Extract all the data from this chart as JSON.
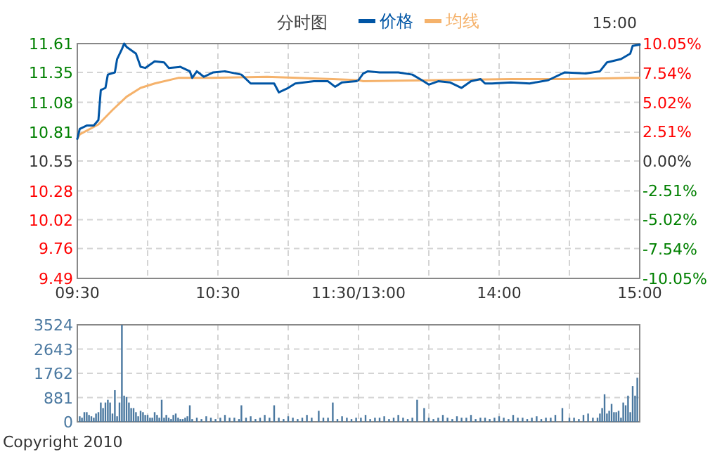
{
  "chart_data": [
    {
      "type": "line",
      "title": "分时图",
      "legend": "top",
      "grid": true,
      "xlim": [
        9.5,
        11.5
      ],
      "xticks": [
        {
          "value": 9.5,
          "label": "09:30"
        },
        {
          "value": 10,
          "label": null
        },
        {
          "value": 10.5,
          "label": "10:30"
        },
        {
          "value": 11,
          "label": null
        },
        {
          "value": 11.5,
          "label": "11:30/13:00"
        }
      ],
      "ylim": [
        9.49,
        11.61
      ],
      "yticks": [
        9.49,
        9.76,
        10.02,
        10.28,
        10.55,
        10.81,
        11.08,
        11.35,
        11.61
      ],
      "series": [
        {
          "name": "价格",
          "color": "#0055a5",
          "x": [
            9.5,
            9.517,
            9.567,
            9.617,
            9.65,
            9.667,
            9.7,
            9.717,
            9.767,
            9.783,
            9.817,
            9.833,
            9.85,
            9.917,
            9.95,
            9.983,
            10.05,
            10.117,
            10.15,
            10.233,
            10.3,
            10.317,
            10.35,
            10.4,
            10.467,
            10.55,
            10.667,
            10.733,
            10.783,
            10.9,
            10.933,
            11,
            11.05,
            11.183,
            11.283,
            11.333,
            11.383,
            11.483,
            11.5
          ],
          "values": [
            10.75,
            10.84,
            10.87,
            10.87,
            10.92,
            11.19,
            11.21,
            11.33,
            11.35,
            11.47,
            11.56,
            11.61,
            11.58,
            11.52,
            11.4,
            11.39,
            11.45,
            11.44,
            11.39,
            11.4,
            11.36,
            11.3,
            11.36,
            11.31,
            11.35,
            11.36,
            11.33,
            11.25,
            11.25,
            11.25,
            11.17,
            11.21,
            11.25,
            11.27,
            11.27,
            11.22,
            11.26,
            11.27,
            11.28
          ]
        },
        {
          "name": "均线",
          "color": "#f5b26b",
          "x": [
            9.5,
            9.517,
            9.65,
            9.75,
            9.85,
            9.95,
            10.05,
            10.217,
            10.45,
            10.85,
            11.317,
            11.5
          ],
          "values": [
            10.75,
            10.79,
            10.88,
            11.01,
            11.13,
            11.21,
            11.25,
            11.3,
            11.3,
            11.31,
            11.29,
            11.28
          ]
        }
      ]
    },
    {
      "type": "line",
      "grid": true,
      "tick_labels": "x",
      "xlim": [
        13,
        15
      ],
      "xticks": [
        {
          "value": 13.5,
          "label": null
        },
        {
          "value": 14,
          "label": "14:00"
        },
        {
          "value": 14.5,
          "label": null
        },
        {
          "value": 15,
          "label": "15:00"
        }
      ],
      "ylim": [
        9.49,
        11.61
      ],
      "yticks": [
        9.49,
        9.76,
        10.02,
        10.28,
        10.55,
        10.81,
        11.08,
        11.35,
        11.61
      ],
      "y2lim": [
        -10.05,
        10.05
      ],
      "y2ticks": [
        {
          "value": 10.05,
          "label": "10.05%"
        },
        {
          "value": 7.54,
          "label": "7.54%"
        },
        {
          "value": 5.02,
          "label": "5.02%"
        },
        {
          "value": 2.51,
          "label": "2.51%"
        },
        {
          "value": 0,
          "label": "0.00%"
        },
        {
          "value": -2.51,
          "label": "-2.51%"
        },
        {
          "value": -5.02,
          "label": "-5.02%"
        },
        {
          "value": -7.54,
          "label": "-7.54%"
        },
        {
          "value": -10.05,
          "label": "-10.05%"
        }
      ],
      "annotations": [
        "15:00"
      ],
      "series": [
        {
          "color": "#0055a5",
          "x": [
            13,
            13.033,
            13.067,
            13.15,
            13.283,
            13.383,
            13.45,
            13.5,
            13.567,
            13.65,
            13.733,
            13.8,
            13.867,
            13.9,
            13.95,
            14.083,
            14.217,
            14.35,
            14.467,
            14.617,
            14.717,
            14.767,
            14.867,
            14.933,
            14.95,
            15
          ],
          "values": [
            11.28,
            11.34,
            11.36,
            11.35,
            11.35,
            11.33,
            11.28,
            11.24,
            11.27,
            11.26,
            11.21,
            11.27,
            11.29,
            11.25,
            11.25,
            11.26,
            11.25,
            11.28,
            11.35,
            11.34,
            11.36,
            11.44,
            11.47,
            11.52,
            11.59,
            11.6
          ]
        },
        {
          "color": "#f5b26b",
          "x": [
            13,
            13.033,
            14.083,
            14.483,
            14.933,
            15
          ],
          "values": [
            11.28,
            11.27,
            11.29,
            11.29,
            11.3,
            11.3
          ]
        }
      ]
    },
    {
      "type": "bar",
      "color": "#4a78a0",
      "grid": true,
      "tick_labels": "y",
      "xlim": [
        9.5,
        11.5
      ],
      "xticks": [
        9.5,
        10,
        10.5,
        11,
        11.5
      ],
      "ylim": [
        0,
        3524
      ],
      "yticks": [
        0,
        881,
        1762,
        2643,
        3524
      ],
      "x": [
        9.517,
        9.533,
        9.55,
        9.567,
        9.583,
        9.6,
        9.617,
        9.633,
        9.65,
        9.667,
        9.683,
        9.7,
        9.717,
        9.733,
        9.75,
        9.767,
        9.783,
        9.8,
        9.817,
        9.833,
        9.85,
        9.867,
        9.883,
        9.9,
        9.917,
        9.933,
        9.95,
        9.967,
        9.983,
        10,
        10.017,
        10.033,
        10.05,
        10.067,
        10.083,
        10.1,
        10.117,
        10.133,
        10.15,
        10.167,
        10.183,
        10.2,
        10.217,
        10.233,
        10.25,
        10.267,
        10.283,
        10.3,
        10.317,
        10.35,
        10.383,
        10.417,
        10.45,
        10.483,
        10.517,
        10.55,
        10.583,
        10.617,
        10.65,
        10.667,
        10.7,
        10.733,
        10.767,
        10.8,
        10.833,
        10.867,
        10.9,
        10.933,
        10.967,
        11,
        11.033,
        11.067,
        11.1,
        11.133,
        11.167,
        11.217,
        11.25,
        11.283,
        11.317,
        11.35,
        11.383,
        11.417,
        11.45,
        11.483
      ],
      "values": [
        200,
        150,
        350,
        350,
        250,
        200,
        150,
        300,
        350,
        700,
        500,
        700,
        800,
        700,
        300,
        1150,
        200,
        700,
        3524,
        950,
        900,
        700,
        500,
        500,
        350,
        200,
        400,
        350,
        250,
        250,
        150,
        150,
        350,
        250,
        150,
        800,
        150,
        250,
        150,
        100,
        250,
        300,
        150,
        100,
        100,
        150,
        200,
        600,
        100,
        150,
        100,
        200,
        150,
        100,
        150,
        250,
        150,
        150,
        100,
        600,
        150,
        200,
        100,
        150,
        250,
        150,
        600,
        150,
        100,
        200,
        150,
        100,
        150,
        250,
        150,
        400,
        150,
        150,
        700,
        100,
        200,
        150,
        100,
        150
      ]
    },
    {
      "type": "bar",
      "color": "#4a78a0",
      "grid": true,
      "tick_labels": false,
      "xlim": [
        13,
        15
      ],
      "xticks": [
        13.5,
        14,
        14.5,
        15
      ],
      "ylim": [
        0,
        3524
      ],
      "yticks": [
        0,
        881,
        1762,
        2643,
        3524
      ],
      "annotations": [
        "Copyright 2010"
      ],
      "x": [
        13.017,
        13.05,
        13.083,
        13.117,
        13.15,
        13.183,
        13.217,
        13.25,
        13.283,
        13.317,
        13.35,
        13.383,
        13.417,
        13.467,
        13.5,
        13.533,
        13.567,
        13.6,
        13.633,
        13.667,
        13.7,
        13.733,
        13.767,
        13.8,
        13.833,
        13.867,
        13.9,
        13.933,
        13.967,
        14,
        14.033,
        14.067,
        14.1,
        14.133,
        14.167,
        14.2,
        14.233,
        14.267,
        14.3,
        14.333,
        14.367,
        14.4,
        14.45,
        14.5,
        14.533,
        14.567,
        14.6,
        14.633,
        14.667,
        14.7,
        14.717,
        14.733,
        14.75,
        14.767,
        14.783,
        14.8,
        14.817,
        14.833,
        14.85,
        14.867,
        14.883,
        14.9,
        14.917,
        14.933,
        14.95,
        14.967,
        14.983
      ],
      "values": [
        150,
        250,
        100,
        150,
        150,
        200,
        100,
        150,
        250,
        150,
        100,
        150,
        800,
        500,
        150,
        100,
        150,
        250,
        150,
        100,
        200,
        150,
        150,
        250,
        100,
        150,
        150,
        100,
        150,
        200,
        150,
        100,
        250,
        150,
        150,
        100,
        150,
        200,
        100,
        150,
        150,
        250,
        500,
        150,
        150,
        100,
        250,
        300,
        150,
        150,
        300,
        500,
        1000,
        300,
        400,
        650,
        350,
        350,
        400,
        150,
        700,
        600,
        950,
        350,
        1300,
        950,
        1600
      ]
    }
  ]
}
